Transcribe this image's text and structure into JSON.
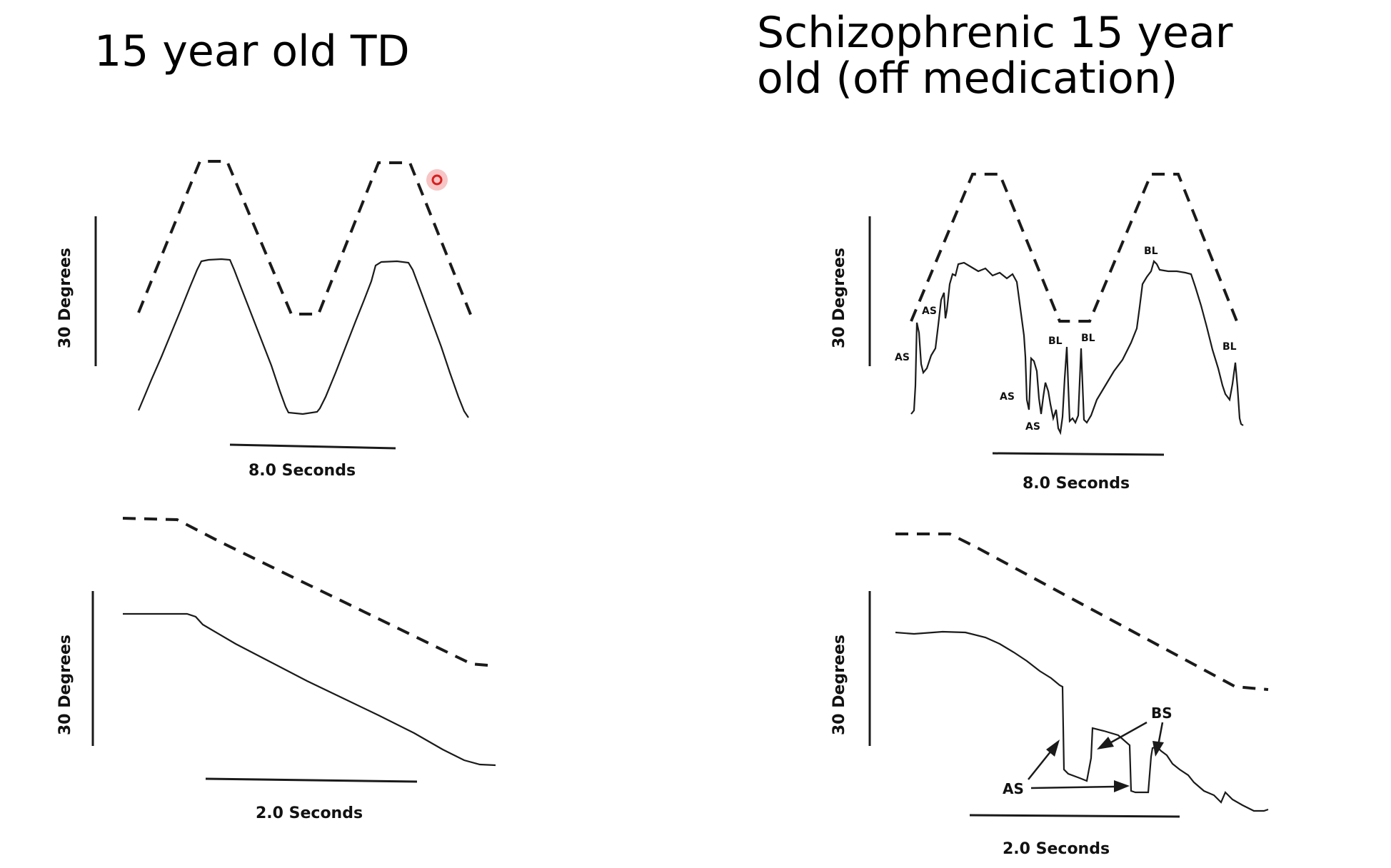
{
  "titles": {
    "left": "15 year old TD",
    "right_line1": "Schizophrenic 15 year",
    "right_line2": "old (off medication)"
  },
  "axis": {
    "y_label": "30 Degrees",
    "x_label_top": "8.0 Seconds",
    "x_label_bottom": "2.0 Seconds"
  },
  "annotations": {
    "as": "AS",
    "bl": "BL",
    "bs": "BS"
  },
  "colors": {
    "text": "#000000",
    "traces": "#1a1a1a",
    "cursor_marker": "#d62020"
  },
  "icons": {
    "cursor": "red-circle-cursor-icon"
  }
}
